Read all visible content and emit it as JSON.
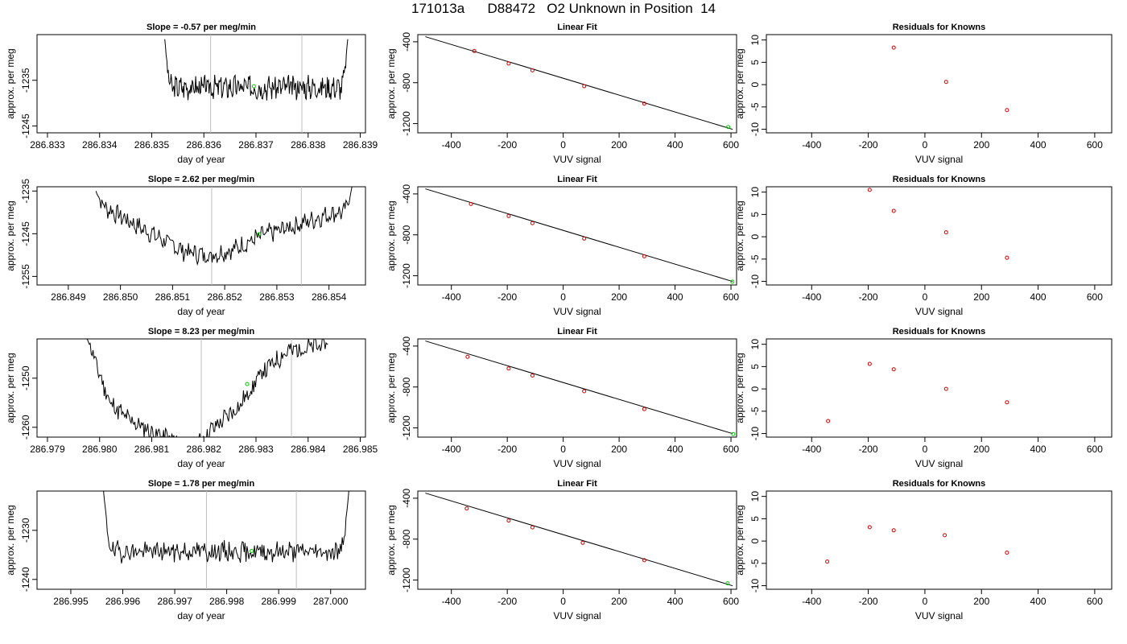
{
  "page_title": "171013a      D88472   O2 Unknown in Position  14",
  "colors": {
    "trace": "#000000",
    "marker_unknown": "#00cc00",
    "marker_known": "#cc0000",
    "vline": "#bebebe",
    "fit_line": "#000000"
  },
  "chart_data": [
    {
      "type": "line",
      "panel": "timeseries",
      "title": "Slope =  -0.57  per meg/min",
      "xlabel": "day of year",
      "ylabel": "approx. per meg",
      "xlim": [
        286.8328,
        286.8391
      ],
      "ylim": [
        -1246.5,
        -1225
      ],
      "xticks": [
        286.833,
        286.834,
        286.835,
        286.836,
        286.837,
        286.838,
        286.839
      ],
      "xtick_labels": [
        "286.833",
        "286.834",
        "286.835",
        "286.836",
        "286.837",
        "286.838",
        "286.839"
      ],
      "yticks": [
        -1235,
        -1245
      ],
      "ytick_labels": [
        "-1235",
        "-1245"
      ],
      "x_start": 286.83525,
      "x_end": 286.83876,
      "y_left": -1226,
      "y_right": -1226,
      "center": -1236.5,
      "amp": 2.2,
      "seed": 3,
      "vlines": [
        286.83613,
        286.83788
      ],
      "marker": {
        "x": 286.83696,
        "y": -1236.3
      }
    },
    {
      "type": "scatter",
      "panel": "fit",
      "title": "Linear Fit",
      "xlabel": "VUV signal",
      "ylabel": "approx. per meg",
      "xlim": [
        -520,
        620
      ],
      "ylim": [
        -1290,
        -330
      ],
      "xticks": [
        -400,
        -200,
        0,
        200,
        400,
        600
      ],
      "xtick_labels": [
        "-400",
        "-200",
        "0",
        "200",
        "400",
        "600"
      ],
      "yticks": [
        -400,
        -800,
        -1200
      ],
      "ytick_labels": [
        "-400",
        "-800",
        "-1200"
      ],
      "line": [
        [
          -493,
          -350
        ],
        [
          606,
          -1256
        ]
      ],
      "points": [
        [
          -318,
          -490
        ],
        [
          -195,
          -612
        ],
        [
          -110,
          -679
        ],
        [
          75,
          -834
        ],
        [
          290,
          -1005
        ]
      ],
      "marker": {
        "x": 590,
        "y": -1233
      }
    },
    {
      "type": "scatter",
      "panel": "residuals",
      "title": "Residuals for Knowns",
      "xlabel": "VUV signal",
      "ylabel": "approx. per meg",
      "xlim": [
        -560,
        660
      ],
      "ylim": [
        -10.8,
        11.2
      ],
      "xticks": [
        -400,
        -200,
        0,
        200,
        400,
        600
      ],
      "xtick_labels": [
        "-400",
        "-200",
        "0",
        "200",
        "400",
        "600"
      ],
      "yticks": [
        10,
        5,
        0,
        -5,
        -10
      ],
      "ytick_labels": [
        "10",
        "5",
        "0",
        "-5",
        "-10"
      ],
      "points": [
        [
          -110,
          8.3
        ],
        [
          75,
          0.6
        ],
        [
          290,
          -5.7
        ]
      ]
    },
    {
      "type": "line",
      "panel": "timeseries",
      "title": "Slope =  2.62  per meg/min",
      "xlabel": "day of year",
      "ylabel": "approx. per meg",
      "xlim": [
        286.8484,
        286.8547
      ],
      "ylim": [
        -1257,
        -1234
      ],
      "xticks": [
        286.849,
        286.85,
        286.851,
        286.852,
        286.853,
        286.854
      ],
      "xtick_labels": [
        "286.849",
        "286.850",
        "286.851",
        "286.852",
        "286.853",
        "286.854"
      ],
      "yticks": [
        -1235,
        -1245,
        -1255
      ],
      "ytick_labels": [
        "-1235",
        "-1245",
        "-1255"
      ],
      "x_start": 286.84953,
      "x_end": 286.85444,
      "y_left": -1235,
      "y_right": -1234,
      "curve": [
        [
          286.84953,
          -1237.6
        ],
        [
          286.8503,
          -1243
        ],
        [
          286.8512,
          -1249
        ],
        [
          286.8517,
          -1250.2
        ],
        [
          286.8522,
          -1248.5
        ],
        [
          286.8527,
          -1245.5
        ],
        [
          286.8535,
          -1242.5
        ],
        [
          286.8541,
          -1240
        ]
      ],
      "amp": 1.9,
      "seed": 7,
      "vlines": [
        286.85175,
        286.85347
      ],
      "marker": {
        "x": 286.85266,
        "y": -1245.1
      }
    },
    {
      "type": "scatter",
      "panel": "fit",
      "title": "Linear Fit",
      "xlabel": "VUV signal",
      "ylabel": "approx. per meg",
      "xlim": [
        -520,
        620
      ],
      "ylim": [
        -1290,
        -330
      ],
      "xticks": [
        -400,
        -200,
        0,
        200,
        400,
        600
      ],
      "xtick_labels": [
        "-400",
        "-200",
        "0",
        "200",
        "400",
        "600"
      ],
      "yticks": [
        -400,
        -800,
        -1200
      ],
      "ytick_labels": [
        "-400",
        "-800",
        "-1200"
      ],
      "line": [
        [
          -493,
          -350
        ],
        [
          606,
          -1256
        ]
      ],
      "points": [
        [
          -330,
          -498
        ],
        [
          -195,
          -616
        ],
        [
          -110,
          -686
        ],
        [
          75,
          -836
        ],
        [
          290,
          -1010
        ]
      ],
      "marker": {
        "x": 605,
        "y": -1258
      }
    },
    {
      "type": "scatter",
      "panel": "residuals",
      "title": "Residuals for Knowns",
      "xlabel": "VUV signal",
      "ylabel": "approx. per meg",
      "xlim": [
        -560,
        660
      ],
      "ylim": [
        -10.8,
        11.2
      ],
      "xticks": [
        -400,
        -200,
        0,
        200,
        400,
        600
      ],
      "xtick_labels": [
        "-400",
        "-200",
        "0",
        "200",
        "400",
        "600"
      ],
      "yticks": [
        10,
        5,
        0,
        -5,
        -10
      ],
      "ytick_labels": [
        "10",
        "5",
        "0",
        "-5",
        "-10"
      ],
      "points": [
        [
          -195,
          10.5
        ],
        [
          -110,
          5.8
        ],
        [
          75,
          1.0
        ],
        [
          290,
          -4.7
        ]
      ]
    },
    {
      "type": "line",
      "panel": "timeseries",
      "title": "Slope =  8.23  per meg/min",
      "xlabel": "day of year",
      "ylabel": "approx. per meg",
      "xlim": [
        286.9788,
        286.9851
      ],
      "ylim": [
        -1262,
        -1242
      ],
      "xticks": [
        286.979,
        286.98,
        286.981,
        286.982,
        286.983,
        286.984,
        286.985
      ],
      "xtick_labels": [
        "286.979",
        "286.980",
        "286.981",
        "286.982",
        "286.983",
        "286.984",
        "286.985"
      ],
      "yticks": [
        -1250,
        -1260
      ],
      "ytick_labels": [
        "-1250",
        "-1260"
      ],
      "x_start": 286.97975,
      "x_end": 286.98438,
      "y_left": -1242,
      "y_right": -1243,
      "curve": [
        [
          286.97975,
          -1242
        ],
        [
          286.9802,
          -1255
        ],
        [
          286.9805,
          -1258
        ],
        [
          286.981,
          -1261
        ],
        [
          286.9818,
          -1264
        ],
        [
          286.9822,
          -1260
        ],
        [
          286.9827,
          -1255.5
        ],
        [
          286.9831,
          -1249
        ],
        [
          286.9836,
          -1244.5
        ],
        [
          286.9844,
          -1243
        ]
      ],
      "amp": 1.7,
      "seed": 11,
      "vlines": [
        286.98195,
        286.98368
      ],
      "marker": {
        "x": 286.98283,
        "y": -1251.2
      }
    },
    {
      "type": "scatter",
      "panel": "fit",
      "title": "Linear Fit",
      "xlabel": "VUV signal",
      "ylabel": "approx. per meg",
      "xlim": [
        -520,
        620
      ],
      "ylim": [
        -1290,
        -330
      ],
      "xticks": [
        -400,
        -200,
        0,
        200,
        400,
        600
      ],
      "xtick_labels": [
        "-400",
        "-200",
        "0",
        "200",
        "400",
        "600"
      ],
      "yticks": [
        -400,
        -800,
        -1200
      ],
      "ytick_labels": [
        "-400",
        "-800",
        "-1200"
      ],
      "line": [
        [
          -493,
          -350
        ],
        [
          606,
          -1256
        ]
      ],
      "points": [
        [
          -342,
          -505
        ],
        [
          -195,
          -619
        ],
        [
          -110,
          -688
        ],
        [
          75,
          -841
        ],
        [
          290,
          -1016
        ]
      ],
      "marker": {
        "x": 608,
        "y": -1260
      }
    },
    {
      "type": "scatter",
      "panel": "residuals",
      "title": "Residuals for Knowns",
      "xlabel": "VUV signal",
      "ylabel": "approx. per meg",
      "xlim": [
        -560,
        660
      ],
      "ylim": [
        -10.8,
        11.2
      ],
      "xticks": [
        -400,
        -200,
        0,
        200,
        400,
        600
      ],
      "xtick_labels": [
        "-400",
        "-200",
        "0",
        "200",
        "400",
        "600"
      ],
      "yticks": [
        10,
        5,
        0,
        -5,
        -10
      ],
      "ytick_labels": [
        "10",
        "5",
        "0",
        "-5",
        "-10"
      ],
      "points": [
        [
          -342,
          -7.2
        ],
        [
          -195,
          5.6
        ],
        [
          -110,
          4.4
        ],
        [
          75,
          0.0
        ],
        [
          290,
          -3.0
        ]
      ]
    },
    {
      "type": "line",
      "panel": "timeseries",
      "title": "Slope =  1.78  per meg/min",
      "xlabel": "day of year",
      "ylabel": "approx. per meg",
      "xlim": [
        286.99435,
        287.00067
      ],
      "ylim": [
        -1242,
        -1222
      ],
      "xticks": [
        286.995,
        286.996,
        286.997,
        286.998,
        286.999,
        287.0
      ],
      "xtick_labels": [
        "286.995",
        "286.996",
        "286.997",
        "286.998",
        "286.999",
        "287.000"
      ],
      "yticks": [
        -1230,
        -1240
      ],
      "ytick_labels": [
        "-1230",
        "-1240"
      ],
      "x_start": 286.99563,
      "x_end": 287.00035,
      "y_left": -1222,
      "y_right": -1222,
      "center": -1234.3,
      "amp": 1.8,
      "seed": 19,
      "vlines": [
        286.99761,
        286.99934
      ],
      "marker": {
        "x": 286.99848,
        "y": -1234.2
      }
    },
    {
      "type": "scatter",
      "panel": "fit",
      "title": "Linear Fit",
      "xlabel": "VUV signal",
      "ylabel": "approx. per meg",
      "xlim": [
        -520,
        620
      ],
      "ylim": [
        -1290,
        -330
      ],
      "xticks": [
        -400,
        -200,
        0,
        200,
        400,
        600
      ],
      "xtick_labels": [
        "-400",
        "-200",
        "0",
        "200",
        "400",
        "600"
      ],
      "yticks": [
        -400,
        -800,
        -1200
      ],
      "ytick_labels": [
        "-400",
        "-800",
        "-1200"
      ],
      "line": [
        [
          -493,
          -350
        ],
        [
          606,
          -1256
        ]
      ],
      "points": [
        [
          -345,
          -500
        ],
        [
          -195,
          -618
        ],
        [
          -110,
          -685
        ],
        [
          70,
          -836
        ],
        [
          290,
          -1006
        ]
      ],
      "marker": {
        "x": 588,
        "y": -1232
      }
    },
    {
      "type": "scatter",
      "panel": "residuals",
      "title": "Residuals for Knowns",
      "xlabel": "VUV signal",
      "ylabel": "approx. per meg",
      "xlim": [
        -560,
        660
      ],
      "ylim": [
        -10.8,
        11.2
      ],
      "xticks": [
        -400,
        -200,
        0,
        200,
        400,
        600
      ],
      "xtick_labels": [
        "-400",
        "-200",
        "0",
        "200",
        "400",
        "600"
      ],
      "yticks": [
        10,
        5,
        0,
        -5,
        -10
      ],
      "ytick_labels": [
        "10",
        "5",
        "0",
        "-5",
        "-10"
      ],
      "points": [
        [
          -345,
          -4.6
        ],
        [
          -195,
          3.1
        ],
        [
          -110,
          2.4
        ],
        [
          70,
          1.3
        ],
        [
          290,
          -2.6
        ]
      ]
    }
  ]
}
